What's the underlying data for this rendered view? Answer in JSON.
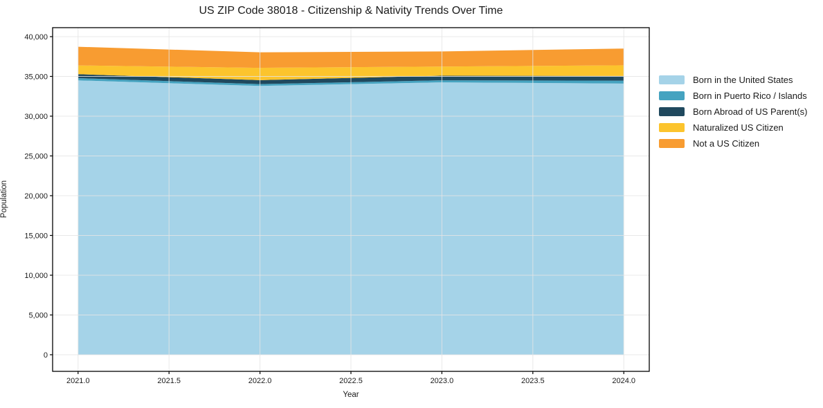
{
  "chart_data": {
    "type": "area",
    "stacked": true,
    "title": "US ZIP Code 38018 - Citizenship & Nativity Trends Over Time",
    "xlabel": "Year",
    "ylabel": "Population",
    "x": [
      2021,
      2022,
      2023,
      2024
    ],
    "series": [
      {
        "name": "Born in the United States",
        "color": "#a5d3e8",
        "values": [
          34500,
          33800,
          34250,
          34100
        ]
      },
      {
        "name": "Born in Puerto Rico / Islands",
        "color": "#45a3c0",
        "values": [
          280,
          230,
          260,
          370
        ]
      },
      {
        "name": "Born Abroad of US Parent(s)",
        "color": "#20495e",
        "values": [
          500,
          500,
          580,
          580
        ]
      },
      {
        "name": "Naturalized US Citizen",
        "color": "#fcc42d",
        "values": [
          1100,
          1550,
          1150,
          1350
        ]
      },
      {
        "name": "Not a US Citizen",
        "color": "#f89c31",
        "values": [
          2350,
          1950,
          1900,
          2100
        ]
      }
    ],
    "x_tick_values": [
      2021.0,
      2021.5,
      2022.0,
      2022.5,
      2023.0,
      2023.5,
      2024.0
    ],
    "x_tick_labels": [
      "2021.0",
      "2021.5",
      "2022.0",
      "2022.5",
      "2023.0",
      "2023.5",
      "2024.0"
    ],
    "y_tick_values": [
      0,
      5000,
      10000,
      15000,
      20000,
      25000,
      30000,
      35000,
      40000
    ],
    "y_tick_labels": [
      "0",
      "5,000",
      "10,000",
      "15,000",
      "20,000",
      "25,000",
      "30,000",
      "35,000",
      "40,000"
    ],
    "xlim": [
      2020.86,
      2024.14
    ],
    "ylim": [
      -2090,
      41130
    ],
    "grid": true,
    "legend_position": "outside-right",
    "colors": {
      "spine": "#000000",
      "grid": "#e5e5e5",
      "tick_text": "#1a1a1a"
    }
  }
}
